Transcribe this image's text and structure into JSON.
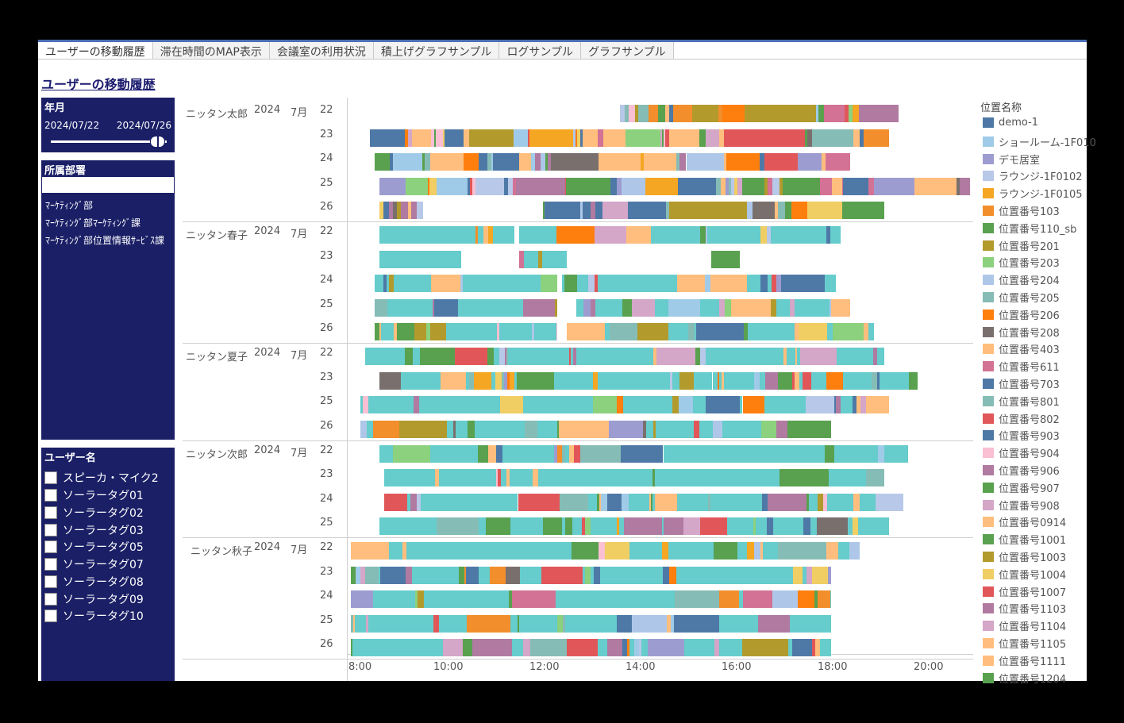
{
  "tabs": [
    "ユーザーの移動履歴",
    "滞在時間のMAP表示",
    "会議室の利用状況",
    "積上げグラフサンプル",
    "ログサンプル",
    "グラフサンプル"
  ],
  "page_title": "ユーザーの移動履歴",
  "filters": {
    "date": {
      "title": "年月",
      "start": "2024/07/22",
      "end": "2024/07/26",
      "slider_fraction": 1.0
    },
    "dept": {
      "title": "所属部署",
      "input_value": "",
      "items": [
        "ﾏｰｹﾃｨﾝｸﾞ部",
        "ﾏｰｹﾃｨﾝｸﾞ部ﾏｰｹﾃｨﾝｸﾞ課",
        "ﾏｰｹﾃｨﾝｸﾞ部位置情報ｻｰﾋﾞｽ課"
      ]
    },
    "users": {
      "title": "ユーザー名",
      "items": [
        "スピーカ・マイク2",
        "ソーラータグ01",
        "ソーラータグ02",
        "ソーラータグ03",
        "ソーラータグ05",
        "ソーラータグ07",
        "ソーラータグ08",
        "ソーラータグ09",
        "ソーラータグ10"
      ]
    }
  },
  "chart_data": {
    "type": "gantt",
    "x_ticks": [
      "8:00",
      "10:00",
      "12:00",
      "14:00",
      "16:00",
      "18:00",
      "20:00"
    ],
    "x_range_hours": [
      8,
      21
    ],
    "groups": [
      {
        "user": "ニッタン太郎",
        "year": "2024",
        "month": "7月",
        "days": [
          "22",
          "23",
          "24",
          "25",
          "26"
        ]
      },
      {
        "user": "ニッタン春子",
        "year": "2024",
        "month": "7月",
        "days": [
          "22",
          "23",
          "24",
          "25",
          "26"
        ]
      },
      {
        "user": "ニッタン夏子",
        "year": "2024",
        "month": "7月",
        "days": [
          "22",
          "23",
          "25",
          "26"
        ]
      },
      {
        "user": "ニッタン次郎",
        "year": "2024",
        "month": "7月",
        "days": [
          "22",
          "23",
          "24",
          "25"
        ]
      },
      {
        "user": "ニッタン秋子",
        "year": "2024",
        "month": "7月",
        "days": [
          "22",
          "23",
          "24",
          "25",
          "26"
        ]
      }
    ]
  },
  "legend": {
    "title": "位置名称",
    "items": [
      {
        "label": "demo-1",
        "color": "#4e79a7"
      },
      {
        "label": "ショールーム-1F010",
        "color": "#a0cbe8"
      },
      {
        "label": "デモ居室",
        "color": "#9d9cd0"
      },
      {
        "label": "ラウンジ-1F0102",
        "color": "#b8c8e8"
      },
      {
        "label": "ラウンジ-1F0105",
        "color": "#f5a623"
      },
      {
        "label": "位置番号103",
        "color": "#f28e2b"
      },
      {
        "label": "位置番号110_sb",
        "color": "#59a14f"
      },
      {
        "label": "位置番号201",
        "color": "#b39a2d"
      },
      {
        "label": "位置番号203",
        "color": "#8cd17d"
      },
      {
        "label": "位置番号204",
        "color": "#aec7e8"
      },
      {
        "label": "位置番号205",
        "color": "#86bcb6"
      },
      {
        "label": "位置番号206",
        "color": "#ff7f0e"
      },
      {
        "label": "位置番号208",
        "color": "#79706e"
      },
      {
        "label": "位置番号403",
        "color": "#ffbe7d"
      },
      {
        "label": "位置番号611",
        "color": "#d37295"
      },
      {
        "label": "位置番号703",
        "color": "#4e79a7"
      },
      {
        "label": "位置番号801",
        "color": "#86bcb6"
      },
      {
        "label": "位置番号802",
        "color": "#e15759"
      },
      {
        "label": "位置番号903",
        "color": "#4e79a7"
      },
      {
        "label": "位置番号904",
        "color": "#fabfd2"
      },
      {
        "label": "位置番号906",
        "color": "#b07aa1"
      },
      {
        "label": "位置番号907",
        "color": "#59a14f"
      },
      {
        "label": "位置番号908",
        "color": "#d4a6c8"
      },
      {
        "label": "位置番号0914",
        "color": "#ffbe7d"
      },
      {
        "label": "位置番号1001",
        "color": "#59a14f"
      },
      {
        "label": "位置番号1003",
        "color": "#b39a2d"
      },
      {
        "label": "位置番号1004",
        "color": "#f1ce63"
      },
      {
        "label": "位置番号1007",
        "color": "#e15759"
      },
      {
        "label": "位置番号1103",
        "color": "#b07aa1"
      },
      {
        "label": "位置番号1104",
        "color": "#d4a6c8"
      },
      {
        "label": "位置番号1105",
        "color": "#ffbe7d"
      },
      {
        "label": "位置番号1111",
        "color": "#ffbe7d"
      },
      {
        "label": "位置番号1204",
        "color": "#59a14f"
      }
    ]
  }
}
